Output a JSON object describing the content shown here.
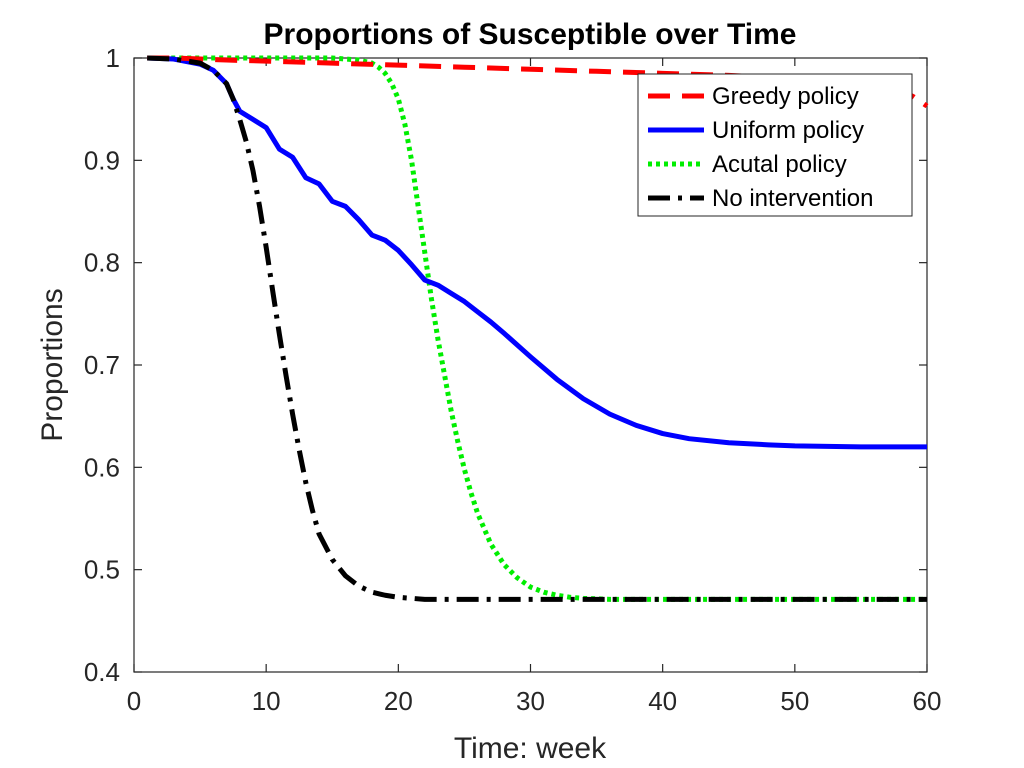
{
  "chart_data": {
    "type": "line",
    "title": "Proportions of Susceptible over Time",
    "xlabel": "Time: week",
    "ylabel": "Proportions",
    "xlim": [
      0,
      60
    ],
    "ylim": [
      0.4,
      1
    ],
    "xticks": [
      "0",
      "10",
      "20",
      "30",
      "40",
      "50",
      "60"
    ],
    "yticks": [
      "0.4",
      "0.5",
      "0.6",
      "0.7",
      "0.8",
      "0.9",
      "1"
    ],
    "legend_position": "top-right",
    "grid": false,
    "series": [
      {
        "name": "Greedy policy",
        "color": "#ff0000",
        "style": "dashed",
        "x": [
          1,
          3,
          5,
          7,
          10,
          15,
          20,
          25,
          30,
          35,
          40,
          45,
          50,
          53,
          55,
          57,
          58,
          59,
          60
        ],
        "y": [
          1.0,
          1.0,
          0.999,
          0.998,
          0.997,
          0.995,
          0.993,
          0.991,
          0.989,
          0.987,
          0.985,
          0.983,
          0.98,
          0.978,
          0.976,
          0.972,
          0.969,
          0.962,
          0.953
        ]
      },
      {
        "name": "Uniform policy",
        "color": "#0000ff",
        "style": "solid",
        "x": [
          1,
          3,
          5,
          6,
          7,
          7.5,
          8,
          9,
          10,
          11,
          12,
          13,
          14,
          15,
          16,
          17,
          18,
          19,
          20,
          21,
          22,
          23,
          24,
          25,
          26,
          27,
          28,
          30,
          32,
          34,
          36,
          38,
          40,
          42,
          45,
          48,
          50,
          55,
          60
        ],
        "y": [
          1.0,
          0.999,
          0.994,
          0.988,
          0.975,
          0.96,
          0.948,
          0.94,
          0.932,
          0.911,
          0.903,
          0.883,
          0.877,
          0.86,
          0.855,
          0.842,
          0.827,
          0.822,
          0.812,
          0.798,
          0.783,
          0.778,
          0.77,
          0.762,
          0.752,
          0.742,
          0.731,
          0.708,
          0.686,
          0.667,
          0.652,
          0.641,
          0.633,
          0.628,
          0.624,
          0.622,
          0.621,
          0.62,
          0.62
        ]
      },
      {
        "name": "Acutal policy",
        "color": "#00ee00",
        "style": "dotted",
        "x": [
          1,
          5,
          10,
          15,
          17,
          18,
          18.5,
          19,
          19.5,
          20,
          20.5,
          21,
          21.5,
          22,
          22.5,
          23,
          23.5,
          24,
          24.5,
          25,
          25.5,
          26,
          27,
          28,
          29,
          30,
          31,
          32,
          33,
          34,
          36,
          40,
          45,
          50,
          55,
          60
        ],
        "y": [
          1.0,
          1.0,
          1.0,
          1.0,
          0.998,
          0.995,
          0.991,
          0.985,
          0.975,
          0.96,
          0.935,
          0.9,
          0.855,
          0.81,
          0.765,
          0.725,
          0.69,
          0.655,
          0.625,
          0.598,
          0.575,
          0.555,
          0.525,
          0.505,
          0.492,
          0.483,
          0.478,
          0.475,
          0.473,
          0.472,
          0.471,
          0.471,
          0.471,
          0.471,
          0.471,
          0.471
        ]
      },
      {
        "name": "No intervention",
        "color": "#000000",
        "style": "dashdot",
        "x": [
          1,
          3,
          5,
          6,
          7,
          7.5,
          8,
          8.5,
          9,
          9.5,
          10,
          10.5,
          11,
          11.5,
          12,
          12.5,
          13,
          13.5,
          14,
          15,
          16,
          17,
          18,
          19,
          20,
          21,
          22,
          25,
          30,
          40,
          50,
          60
        ],
        "y": [
          1.0,
          0.999,
          0.995,
          0.988,
          0.975,
          0.96,
          0.94,
          0.918,
          0.89,
          0.855,
          0.815,
          0.772,
          0.73,
          0.69,
          0.652,
          0.617,
          0.585,
          0.558,
          0.535,
          0.51,
          0.494,
          0.484,
          0.478,
          0.475,
          0.473,
          0.472,
          0.471,
          0.471,
          0.471,
          0.471,
          0.471,
          0.471
        ]
      }
    ]
  }
}
